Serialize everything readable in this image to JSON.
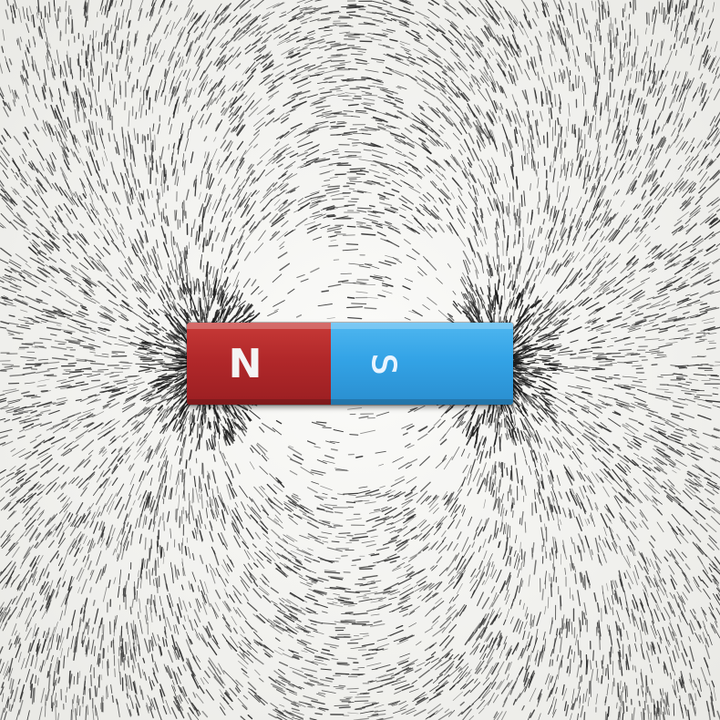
{
  "magnet": {
    "north_label": "N",
    "south_label": "S",
    "north_color": "#b1282a",
    "south_color": "#33a3e6"
  },
  "filings": {
    "color": "#2b2b2b",
    "background": "#f3f3f1"
  }
}
